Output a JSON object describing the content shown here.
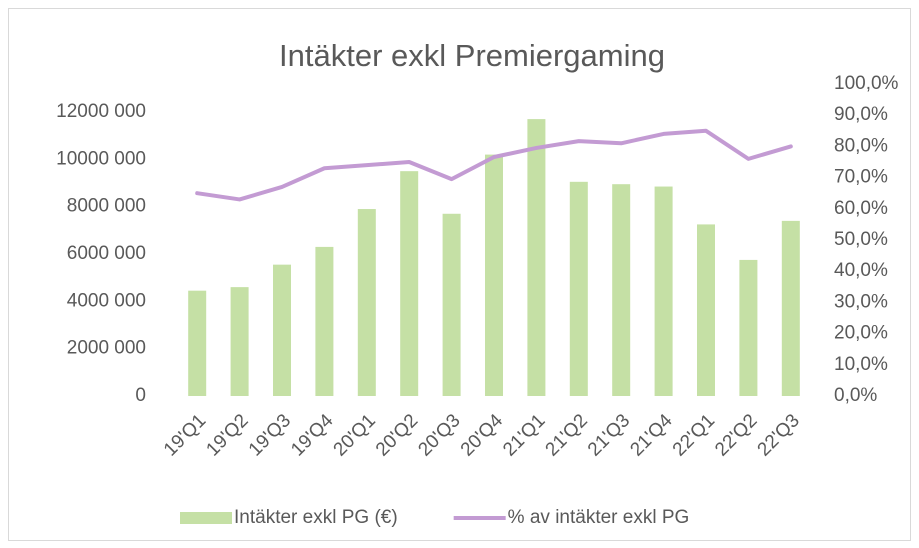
{
  "chart_data": {
    "type": "bar_line",
    "title": "Intäkter exkl Premiergaming",
    "categories": [
      "19'Q1",
      "19'Q2",
      "19'Q3",
      "19'Q4",
      "20'Q1",
      "20'Q2",
      "20'Q3",
      "20'Q4",
      "21'Q1",
      "21'Q2",
      "21'Q3",
      "21'Q4",
      "22'Q1",
      "22'Q2",
      "22'Q3"
    ],
    "series": [
      {
        "name": "Intäkter exkl PG (€)",
        "type": "bar",
        "color": "#c5e0a5",
        "values": [
          4450000,
          4600000,
          5550000,
          6300000,
          7900000,
          9500000,
          7700000,
          10200000,
          11700000,
          9050000,
          8950000,
          8850000,
          7250000,
          5750000,
          7400000
        ]
      },
      {
        "name": "% av intäkter exkl PG",
        "type": "line",
        "axis": "y2",
        "color": "#c39bd3",
        "values": [
          65,
          63,
          67,
          73,
          74,
          75,
          69.5,
          76.6,
          79.5,
          81.7,
          81,
          84,
          85,
          76,
          80
        ]
      }
    ],
    "ylim": [
      0,
      12000000
    ],
    "yticks": [
      {
        "value": 0,
        "label": "0"
      },
      {
        "value": 2000000,
        "label": "2000 000"
      },
      {
        "value": 4000000,
        "label": "4000 000"
      },
      {
        "value": 6000000,
        "label": "6000 000"
      },
      {
        "value": 8000000,
        "label": "8000 000"
      },
      {
        "value": 10000000,
        "label": "10000 000"
      },
      {
        "value": 12000000,
        "label": "12000 000"
      }
    ],
    "y2lim": [
      0,
      100
    ],
    "y2ticks": [
      {
        "value": 0,
        "label": "0,0%"
      },
      {
        "value": 10,
        "label": "10,0%"
      },
      {
        "value": 20,
        "label": "20,0%"
      },
      {
        "value": 30,
        "label": "30,0%"
      },
      {
        "value": 40,
        "label": "40,0%"
      },
      {
        "value": 50,
        "label": "50,0%"
      },
      {
        "value": 60,
        "label": "60,0%"
      },
      {
        "value": 70,
        "label": "70,0%"
      },
      {
        "value": 80,
        "label": "80,0%"
      },
      {
        "value": 90,
        "label": "90,0%"
      },
      {
        "value": 100,
        "label": "100,0%"
      }
    ],
    "legend": "bottom"
  }
}
